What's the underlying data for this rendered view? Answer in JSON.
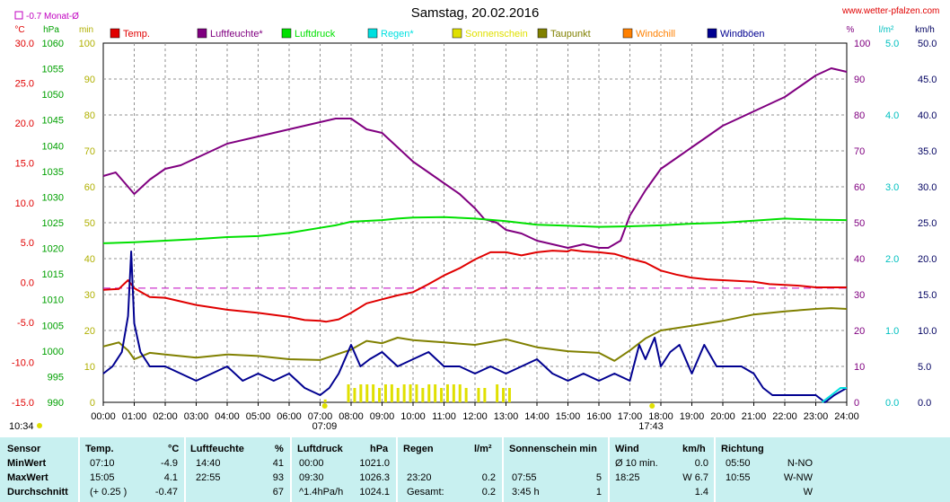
{
  "header": {
    "title": "Samstag, 20.02.2016",
    "site": "www.wetter-pfalzen.com",
    "monthly_note": "-0.7 Monat-Ø",
    "units_left": [
      "°C",
      "hPa",
      "min"
    ],
    "units_right": [
      "%",
      "l/m²",
      "km/h"
    ]
  },
  "legend": [
    {
      "name": "Temp.",
      "color": "#e00000"
    },
    {
      "name": "Luftfeuchte*",
      "color": "#800080"
    },
    {
      "name": "Luftdruck",
      "color": "#00e000"
    },
    {
      "name": "Regen*",
      "color": "#00e0e0"
    },
    {
      "name": "Sonnenschein",
      "color": "#e0e000"
    },
    {
      "name": "Taupunkt",
      "color": "#808000"
    },
    {
      "name": "Windchill",
      "color": "#ff8000"
    },
    {
      "name": "Windböen",
      "color": "#000090"
    }
  ],
  "markers": {
    "sunrise": "07:09",
    "sunset": "17:43",
    "daylength": "10:34"
  },
  "stats": {
    "headers": {
      "sensor": "Sensor",
      "temp": "Temp.",
      "temp_unit": "°C",
      "hum": "Luftfeuchte",
      "hum_unit": "%",
      "press": "Luftdruck",
      "press_unit": "hPa",
      "rain": "Regen",
      "rain_unit": "l/m²",
      "sun": "Sonnenschein min",
      "wind": "Wind",
      "wind_unit": "km/h",
      "dir": "Richtung"
    },
    "rows": [
      {
        "label": "MinWert",
        "temp_time": "07:10",
        "temp_val": "-4.9",
        "hum_time": "14:40",
        "hum_val": "41",
        "press_time": "00:00",
        "press_val": "1021.0",
        "rain_time": "",
        "rain_val": "",
        "sun_time": "",
        "sun_val": "",
        "wind_time": "Ø 10 min.",
        "wind_val": "0.0",
        "dir_time": "05:50",
        "dir_val": "N-NO"
      },
      {
        "label": "MaxWert",
        "temp_time": "15:05",
        "temp_val": "4.1",
        "hum_time": "22:55",
        "hum_val": "93",
        "press_time": "09:30",
        "press_val": "1026.3",
        "rain_time": "23:20",
        "rain_val": "0.2",
        "sun_time": "07:55",
        "sun_val": "5",
        "wind_time": "18:25",
        "wind_val": "W 6.7",
        "dir_time": "10:55",
        "dir_val": "W-NW"
      },
      {
        "label": "Durchschnitt",
        "temp_time": "(+ 0.25 )",
        "temp_val": "-0.47",
        "hum_time": "",
        "hum_val": "67",
        "press_time": "^1.4hPa/h",
        "press_val": "1024.1",
        "rain_time": "Gesamt:",
        "rain_val": "0.2",
        "sun_time": "3:45 h",
        "sun_val": "1",
        "wind_time": "",
        "wind_val": "1.4",
        "dir_time": "",
        "dir_val": "W"
      }
    ]
  },
  "chart_data": {
    "type": "line",
    "xlabel": "",
    "x_ticks": [
      "00:00",
      "01:00",
      "02:00",
      "03:00",
      "04:00",
      "05:00",
      "06:00",
      "07:00",
      "08:00",
      "09:00",
      "10:00",
      "11:00",
      "12:00",
      "13:00",
      "14:00",
      "15:00",
      "16:00",
      "17:00",
      "18:00",
      "19:00",
      "20:00",
      "21:00",
      "22:00",
      "23:00",
      "24:00"
    ],
    "xlim": [
      0,
      24
    ],
    "axes": {
      "temp": {
        "unit": "°C",
        "lim": [
          -15,
          30
        ],
        "ticks": [
          "30.0",
          "25.0",
          "20.0",
          "15.0",
          "10.0",
          "5.0",
          "0.0",
          "-5.0",
          "-10.0",
          "-15.0"
        ]
      },
      "pressure": {
        "unit": "hPa",
        "lim": [
          990,
          1060
        ],
        "ticks": [
          "1060",
          "1055",
          "1050",
          "1045",
          "1040",
          "1035",
          "1030",
          "1025",
          "1020",
          "1015",
          "1010",
          "1005",
          "1000",
          "995",
          "990"
        ]
      },
      "sun": {
        "unit": "min",
        "lim": [
          0,
          100
        ],
        "ticks": [
          "100",
          "90",
          "80",
          "70",
          "60",
          "50",
          "40",
          "30",
          "20",
          "10",
          "0"
        ]
      },
      "humidity": {
        "unit": "%",
        "lim": [
          0,
          100
        ],
        "ticks": [
          "100",
          "90",
          "80",
          "70",
          "60",
          "50",
          "40",
          "30",
          "20",
          "10",
          "0"
        ]
      },
      "rain": {
        "unit": "l/m²",
        "lim": [
          0,
          5
        ],
        "ticks": [
          "5.0",
          "4.0",
          "3.0",
          "2.0",
          "1.0",
          "0.0"
        ]
      },
      "wind": {
        "unit": "km/h",
        "lim": [
          0,
          50
        ],
        "ticks": [
          "50.0",
          "45.0",
          "40.0",
          "35.0",
          "30.0",
          "25.0",
          "20.0",
          "15.0",
          "10.0",
          "5.0",
          "0.0"
        ]
      }
    },
    "monthly_avg_temp": -0.7,
    "series": [
      {
        "name": "Temp.",
        "axis": "temp",
        "color": "#e00000",
        "x": [
          0,
          0.5,
          0.8,
          1.0,
          1.5,
          2,
          3,
          4,
          5,
          6,
          6.5,
          7,
          7.2,
          7.6,
          8,
          8.5,
          9,
          9.5,
          10,
          10.5,
          11,
          11.5,
          12,
          12.5,
          13,
          13.5,
          14,
          14.5,
          15,
          15.1,
          15.5,
          16,
          16.5,
          17,
          17.5,
          18,
          18.5,
          19,
          19.5,
          20,
          20.5,
          21,
          21.5,
          22,
          22.5,
          23,
          24
        ],
        "y": [
          -0.9,
          -0.8,
          0.3,
          -0.7,
          -1.8,
          -1.9,
          -2.8,
          -3.4,
          -3.8,
          -4.3,
          -4.7,
          -4.8,
          -4.9,
          -4.6,
          -3.8,
          -2.6,
          -2.1,
          -1.6,
          -1.2,
          -0.2,
          0.9,
          1.8,
          2.9,
          3.8,
          3.8,
          3.4,
          3.8,
          4.0,
          3.9,
          4.1,
          3.9,
          3.8,
          3.6,
          3.0,
          2.5,
          1.5,
          1.0,
          0.6,
          0.4,
          0.3,
          0.2,
          0.1,
          -0.2,
          -0.3,
          -0.4,
          -0.6,
          -0.6
        ]
      },
      {
        "name": "Luftfeuchte*",
        "axis": "humidity",
        "color": "#800080",
        "x": [
          0,
          0.4,
          0.7,
          1.0,
          1.5,
          2,
          2.5,
          3,
          4,
          5,
          6,
          6.5,
          7,
          7.5,
          8,
          8.5,
          9,
          9.5,
          10,
          10.5,
          11,
          11.5,
          12,
          12.3,
          12.7,
          13,
          13.5,
          14,
          14.5,
          15,
          15.5,
          16,
          16.3,
          16.7,
          17,
          17.5,
          18,
          18.5,
          19,
          19.5,
          20,
          21,
          22,
          22.5,
          23,
          23.5,
          24
        ],
        "y": [
          63,
          64,
          61,
          58,
          62,
          65,
          66,
          68,
          72,
          74,
          76,
          77,
          78,
          79,
          79,
          76,
          75,
          71,
          67,
          64,
          61,
          58,
          54,
          51,
          50,
          48,
          47,
          45,
          44,
          43,
          44,
          43,
          43,
          45,
          52,
          59,
          65,
          68,
          71,
          74,
          77,
          81,
          85,
          88,
          91,
          93,
          92
        ]
      },
      {
        "name": "Luftdruck",
        "axis": "pressure",
        "color": "#00e000",
        "x": [
          0,
          1,
          2,
          3,
          4,
          5,
          6,
          7,
          7.5,
          8,
          9,
          9.5,
          10,
          11,
          12,
          13,
          14,
          15,
          16,
          17,
          18,
          19,
          20,
          21,
          22,
          23,
          24
        ],
        "y": [
          1021.0,
          1021.2,
          1021.5,
          1021.8,
          1022.2,
          1022.4,
          1023.0,
          1024.0,
          1024.5,
          1025.2,
          1025.5,
          1025.8,
          1026.0,
          1026.1,
          1025.8,
          1025.3,
          1024.6,
          1024.4,
          1024.2,
          1024.3,
          1024.5,
          1024.8,
          1025.0,
          1025.4,
          1025.8,
          1025.6,
          1025.5
        ]
      },
      {
        "name": "Taupunkt",
        "axis": "temp",
        "color": "#808000",
        "x": [
          0,
          0.5,
          0.8,
          1.0,
          1.5,
          2,
          3,
          4,
          5,
          6,
          7,
          8,
          8.5,
          9,
          9.5,
          10,
          11,
          12,
          13,
          14,
          15,
          16,
          16.5,
          17,
          17.5,
          18,
          19,
          20,
          21,
          22,
          23,
          23.5,
          24
        ],
        "y": [
          -8.0,
          -7.5,
          -8.5,
          -9.6,
          -8.8,
          -9.0,
          -9.4,
          -9.0,
          -9.2,
          -9.6,
          -9.7,
          -8.4,
          -7.3,
          -7.6,
          -6.9,
          -7.2,
          -7.5,
          -7.8,
          -7.1,
          -8.1,
          -8.6,
          -8.8,
          -9.8,
          -8.5,
          -7.0,
          -6.0,
          -5.4,
          -4.8,
          -4.0,
          -3.6,
          -3.3,
          -3.2,
          -3.3
        ]
      },
      {
        "name": "Windböen",
        "axis": "wind",
        "color": "#000090",
        "x": [
          0,
          0.3,
          0.6,
          0.8,
          0.9,
          1.0,
          1.2,
          1.5,
          2,
          2.5,
          3,
          3.5,
          4,
          4.5,
          5,
          5.5,
          6,
          6.5,
          7,
          7.3,
          7.6,
          8,
          8.3,
          8.6,
          9,
          9.5,
          10,
          10.5,
          11,
          11.5,
          12,
          12.5,
          13,
          13.5,
          14,
          14.5,
          15,
          15.5,
          16,
          16.5,
          17,
          17.3,
          17.5,
          17.8,
          18,
          18.3,
          18.6,
          19,
          19.4,
          19.8,
          20.2,
          20.6,
          21,
          21.3,
          21.6,
          22,
          22.5,
          23,
          23.3,
          23.6,
          24
        ],
        "y": [
          4,
          5,
          7,
          12,
          21,
          11,
          7,
          5,
          5,
          4,
          3,
          4,
          5,
          3,
          4,
          3,
          4,
          2,
          1,
          2,
          4,
          8,
          5,
          6,
          7,
          5,
          6,
          7,
          5,
          5,
          4,
          5,
          4,
          5,
          6,
          4,
          3,
          4,
          3,
          4,
          3,
          8,
          6,
          9,
          5,
          7,
          8,
          4,
          8,
          5,
          5,
          5,
          4,
          2,
          1,
          1,
          1,
          1,
          0,
          1,
          2
        ]
      }
    ],
    "sunshine": {
      "x": [
        7.15,
        7.9,
        8.1,
        8.3,
        8.5,
        8.7,
        8.9,
        9.1,
        9.3,
        9.5,
        9.7,
        9.9,
        10.1,
        10.3,
        10.5,
        10.7,
        10.9,
        11.1,
        11.3,
        11.5,
        11.7,
        12.1,
        12.3,
        12.7,
        12.9,
        13.1
      ],
      "y": [
        0.8,
        5,
        4,
        5,
        5,
        5,
        4,
        5,
        5,
        4,
        5,
        5,
        5,
        4,
        5,
        5,
        4,
        5,
        5,
        5,
        4,
        4,
        4,
        5,
        4,
        4
      ]
    },
    "rain": {
      "x": [
        23.2,
        23.5,
        23.8,
        24
      ],
      "y": [
        0,
        0.1,
        0.2,
        0.2
      ]
    }
  }
}
